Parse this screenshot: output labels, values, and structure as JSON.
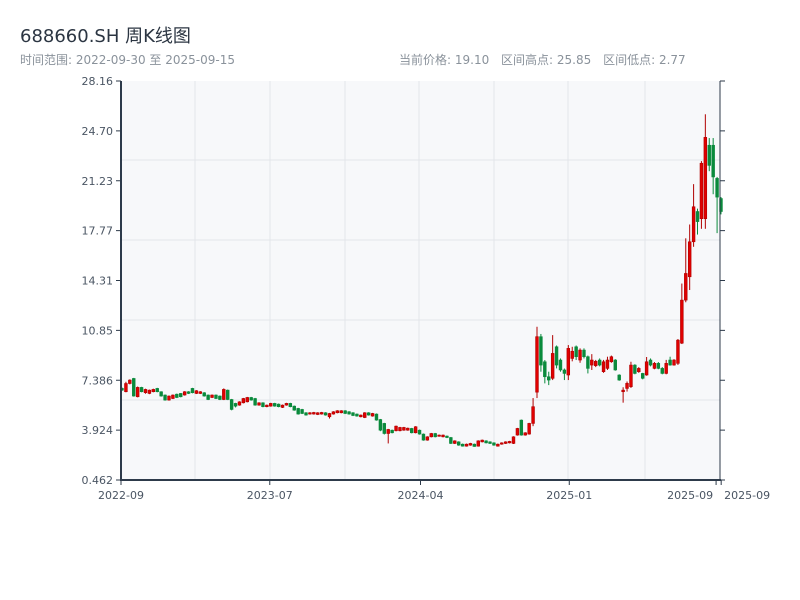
{
  "header": {
    "title": "688660.SH 周K线图",
    "range_label": "时间范围: 2022-09-30 至 2025-09-15",
    "current_price": "当前价格: 19.10",
    "range_high": "区间高点: 25.85",
    "range_low": "区间低点: 2.77"
  },
  "colors": {
    "up": "#e00000",
    "up_border": "#b00000",
    "down": "#0a8a3c",
    "axis": "#2d3a4a",
    "grid": "#e3e6ea",
    "plot_bg": "#f7f8fa"
  },
  "chart_data": {
    "type": "candlestick",
    "title": "688660.SH 周K线图",
    "frequency": "weekly",
    "start_date": "2022-09-30",
    "end_date": "2025-09-15",
    "ylim": [
      0.462,
      28.16
    ],
    "y_ticks": [
      "0.462",
      "3.924",
      "7.386",
      "10.85",
      "14.31",
      "17.77",
      "21.23",
      "24.70",
      "28.16"
    ],
    "x_ticks": [
      {
        "label": "2022-09",
        "index": 0
      },
      {
        "label": "2023-07",
        "index": 38
      },
      {
        "label": "2024-04",
        "index": 76.5
      },
      {
        "label": "2025-01",
        "index": 114.5
      },
      {
        "label": "2025-09",
        "index": 152
      },
      {
        "label": "2025-09",
        "index": 153.3
      }
    ],
    "ohlc_order": [
      "open",
      "close",
      "low",
      "high"
    ],
    "ohlc": [
      [
        6.82,
        6.7,
        6.65,
        6.88
      ],
      [
        6.59,
        7.16,
        6.55,
        7.28
      ],
      [
        7.16,
        7.4,
        7.1,
        7.45
      ],
      [
        7.51,
        6.29,
        6.25,
        7.55
      ],
      [
        6.24,
        6.89,
        6.2,
        6.95
      ],
      [
        6.89,
        6.59,
        6.55,
        6.93
      ],
      [
        6.52,
        6.75,
        6.45,
        6.8
      ],
      [
        6.47,
        6.7,
        6.42,
        6.74
      ],
      [
        6.59,
        6.75,
        6.55,
        6.8
      ],
      [
        6.82,
        6.59,
        6.55,
        6.86
      ],
      [
        6.59,
        6.29,
        6.25,
        6.62
      ],
      [
        6.36,
        6.01,
        5.97,
        6.4
      ],
      [
        6.01,
        6.29,
        5.97,
        6.33
      ],
      [
        6.12,
        6.36,
        6.08,
        6.4
      ],
      [
        6.42,
        6.19,
        6.15,
        6.46
      ],
      [
        6.47,
        6.24,
        6.2,
        6.5
      ],
      [
        6.36,
        6.59,
        6.32,
        6.63
      ],
      [
        6.59,
        6.47,
        6.43,
        6.63
      ],
      [
        6.82,
        6.52,
        6.48,
        6.86
      ],
      [
        6.47,
        6.66,
        6.43,
        6.7
      ],
      [
        6.47,
        6.59,
        6.43,
        6.63
      ],
      [
        6.52,
        6.29,
        6.25,
        6.56
      ],
      [
        6.36,
        6.05,
        6.01,
        6.4
      ],
      [
        6.19,
        6.36,
        6.15,
        6.4
      ],
      [
        6.36,
        6.12,
        6.08,
        6.4
      ],
      [
        6.29,
        6.05,
        6.01,
        6.33
      ],
      [
        6.05,
        6.75,
        6.01,
        6.82
      ],
      [
        6.7,
        6.05,
        6.01,
        6.74
      ],
      [
        6.05,
        5.36,
        5.3,
        6.09
      ],
      [
        5.78,
        5.59,
        5.5,
        5.82
      ],
      [
        5.66,
        5.89,
        5.62,
        5.93
      ],
      [
        5.82,
        6.12,
        5.78,
        6.16
      ],
      [
        5.89,
        6.19,
        5.85,
        6.23
      ],
      [
        6.19,
        6.01,
        5.97,
        6.23
      ],
      [
        6.12,
        5.66,
        5.62,
        6.16
      ],
      [
        5.66,
        5.82,
        5.62,
        5.86
      ],
      [
        5.82,
        5.55,
        5.51,
        5.86
      ],
      [
        5.55,
        5.66,
        5.51,
        5.7
      ],
      [
        5.59,
        5.78,
        5.55,
        5.82
      ],
      [
        5.78,
        5.59,
        5.55,
        5.82
      ],
      [
        5.73,
        5.55,
        5.51,
        5.77
      ],
      [
        5.5,
        5.66,
        5.46,
        5.7
      ],
      [
        5.66,
        5.78,
        5.62,
        5.82
      ],
      [
        5.78,
        5.55,
        5.51,
        5.82
      ],
      [
        5.59,
        5.31,
        5.27,
        5.63
      ],
      [
        5.43,
        5.04,
        5.0,
        5.47
      ],
      [
        5.36,
        5.08,
        5.04,
        5.4
      ],
      [
        5.13,
        4.97,
        4.93,
        5.17
      ],
      [
        5.04,
        5.13,
        5.0,
        5.17
      ],
      [
        5.04,
        5.15,
        5.0,
        5.19
      ],
      [
        5.01,
        5.13,
        4.97,
        5.17
      ],
      [
        5.04,
        5.15,
        5.0,
        5.19
      ],
      [
        5.13,
        4.97,
        4.93,
        5.17
      ],
      [
        4.85,
        5.08,
        4.73,
        5.12
      ],
      [
        5.04,
        5.2,
        5.0,
        5.24
      ],
      [
        5.13,
        5.27,
        5.09,
        5.31
      ],
      [
        5.13,
        5.27,
        5.09,
        5.31
      ],
      [
        5.27,
        5.08,
        5.04,
        5.31
      ],
      [
        5.2,
        5.04,
        5.0,
        5.24
      ],
      [
        5.13,
        4.94,
        4.9,
        5.17
      ],
      [
        5.04,
        4.9,
        4.86,
        5.08
      ],
      [
        4.85,
        4.97,
        4.81,
        5.01
      ],
      [
        4.8,
        5.13,
        4.76,
        5.17
      ],
      [
        5.13,
        4.97,
        4.93,
        5.17
      ],
      [
        4.9,
        5.08,
        4.86,
        5.12
      ],
      [
        5.04,
        4.62,
        4.58,
        5.08
      ],
      [
        4.66,
        3.92,
        3.85,
        4.7
      ],
      [
        4.39,
        3.69,
        3.62,
        4.43
      ],
      [
        3.69,
        3.97,
        3.0,
        4.01
      ],
      [
        3.92,
        3.74,
        3.7,
        3.96
      ],
      [
        3.88,
        4.2,
        3.84,
        4.24
      ],
      [
        3.88,
        4.11,
        3.84,
        4.15
      ],
      [
        3.92,
        4.11,
        3.88,
        4.15
      ],
      [
        3.92,
        4.06,
        3.88,
        4.1
      ],
      [
        4.04,
        3.74,
        3.7,
        4.08
      ],
      [
        3.74,
        4.16,
        3.7,
        4.2
      ],
      [
        3.92,
        3.65,
        3.61,
        3.96
      ],
      [
        3.65,
        3.23,
        3.19,
        3.69
      ],
      [
        3.23,
        3.46,
        3.19,
        3.5
      ],
      [
        3.46,
        3.69,
        3.42,
        3.73
      ],
      [
        3.69,
        3.46,
        3.42,
        3.73
      ],
      [
        3.51,
        3.58,
        3.47,
        3.62
      ],
      [
        3.46,
        3.58,
        3.42,
        3.62
      ],
      [
        3.51,
        3.41,
        3.37,
        3.55
      ],
      [
        3.41,
        3.0,
        2.96,
        3.45
      ],
      [
        3.0,
        3.18,
        2.96,
        3.22
      ],
      [
        3.11,
        2.88,
        2.84,
        3.15
      ],
      [
        2.95,
        2.81,
        2.78,
        2.99
      ],
      [
        2.81,
        2.95,
        2.78,
        2.99
      ],
      [
        2.88,
        3.0,
        2.84,
        3.04
      ],
      [
        2.95,
        2.79,
        2.77,
        2.99
      ],
      [
        2.81,
        3.18,
        2.78,
        3.22
      ],
      [
        3.11,
        3.23,
        3.07,
        3.27
      ],
      [
        3.18,
        3.04,
        3.0,
        3.22
      ],
      [
        3.11,
        3.0,
        2.96,
        3.15
      ],
      [
        3.04,
        2.88,
        2.84,
        3.08
      ],
      [
        2.81,
        2.95,
        2.78,
        2.99
      ],
      [
        2.95,
        3.04,
        2.91,
        3.08
      ],
      [
        3.0,
        3.11,
        2.96,
        3.15
      ],
      [
        3.04,
        3.14,
        3.0,
        3.18
      ],
      [
        3.0,
        3.46,
        2.96,
        3.5
      ],
      [
        3.58,
        4.04,
        3.54,
        4.08
      ],
      [
        4.62,
        3.58,
        3.54,
        4.66
      ],
      [
        3.58,
        3.74,
        3.54,
        3.78
      ],
      [
        3.65,
        4.39,
        3.61,
        4.43
      ],
      [
        4.39,
        5.55,
        4.2,
        6.15
      ],
      [
        6.56,
        10.41,
        6.15,
        11.1
      ],
      [
        10.41,
        8.44,
        7.98,
        10.6
      ],
      [
        8.67,
        7.63,
        7.17,
        8.79
      ],
      [
        7.63,
        7.4,
        7.05,
        7.98
      ],
      [
        7.52,
        9.25,
        7.4,
        10.52
      ],
      [
        9.71,
        8.44,
        8.21,
        9.8
      ],
      [
        8.79,
        8.1,
        7.98,
        8.9
      ],
      [
        8.1,
        7.86,
        7.4,
        8.2
      ],
      [
        7.75,
        9.6,
        7.4,
        9.83
      ],
      [
        8.9,
        9.4,
        8.7,
        9.71
      ],
      [
        9.71,
        9.02,
        8.79,
        9.8
      ],
      [
        8.79,
        9.48,
        8.6,
        9.6
      ],
      [
        9.48,
        9.02,
        8.9,
        9.6
      ],
      [
        9.02,
        8.21,
        7.86,
        9.1
      ],
      [
        8.44,
        8.79,
        8.1,
        9.2
      ],
      [
        8.4,
        8.7,
        8.3,
        8.8
      ],
      [
        8.79,
        8.44,
        8.35,
        8.9
      ],
      [
        7.98,
        8.67,
        7.9,
        8.8
      ],
      [
        8.21,
        8.79,
        8.1,
        9.02
      ],
      [
        8.67,
        9.02,
        8.6,
        9.1
      ],
      [
        8.79,
        8.1,
        8.05,
        8.85
      ],
      [
        7.75,
        7.4,
        7.35,
        7.8
      ],
      [
        6.59,
        6.7,
        5.83,
        6.9
      ],
      [
        6.82,
        7.17,
        6.6,
        7.3
      ],
      [
        6.94,
        8.44,
        6.85,
        8.67
      ],
      [
        8.44,
        7.86,
        7.8,
        8.5
      ],
      [
        7.98,
        8.21,
        7.9,
        8.3
      ],
      [
        7.86,
        7.52,
        7.45,
        7.9
      ],
      [
        7.75,
        8.67,
        7.7,
        9.0
      ],
      [
        8.79,
        8.44,
        8.35,
        8.9
      ],
      [
        8.21,
        8.56,
        8.15,
        8.65
      ],
      [
        8.56,
        8.21,
        8.15,
        8.65
      ],
      [
        8.21,
        7.86,
        7.8,
        8.3
      ],
      [
        7.86,
        8.56,
        7.8,
        8.8
      ],
      [
        8.79,
        8.44,
        8.4,
        9.02
      ],
      [
        8.44,
        8.79,
        8.4,
        8.85
      ],
      [
        8.56,
        10.17,
        8.45,
        10.25
      ],
      [
        9.96,
        12.95,
        9.9,
        14.1
      ],
      [
        12.95,
        14.8,
        12.8,
        17.24
      ],
      [
        14.57,
        17.0,
        13.65,
        18.2
      ],
      [
        17.0,
        19.43,
        16.65,
        21.0
      ],
      [
        19.1,
        18.4,
        17.5,
        19.3
      ],
      [
        18.6,
        22.45,
        17.9,
        22.6
      ],
      [
        18.6,
        24.25,
        17.9,
        25.85
      ],
      [
        23.7,
        22.3,
        21.9,
        24.2
      ],
      [
        23.7,
        21.5,
        20.3,
        24.2
      ],
      [
        21.4,
        20.1,
        17.6,
        21.5
      ],
      [
        20.0,
        19.1,
        18.9,
        20.1
      ]
    ]
  }
}
